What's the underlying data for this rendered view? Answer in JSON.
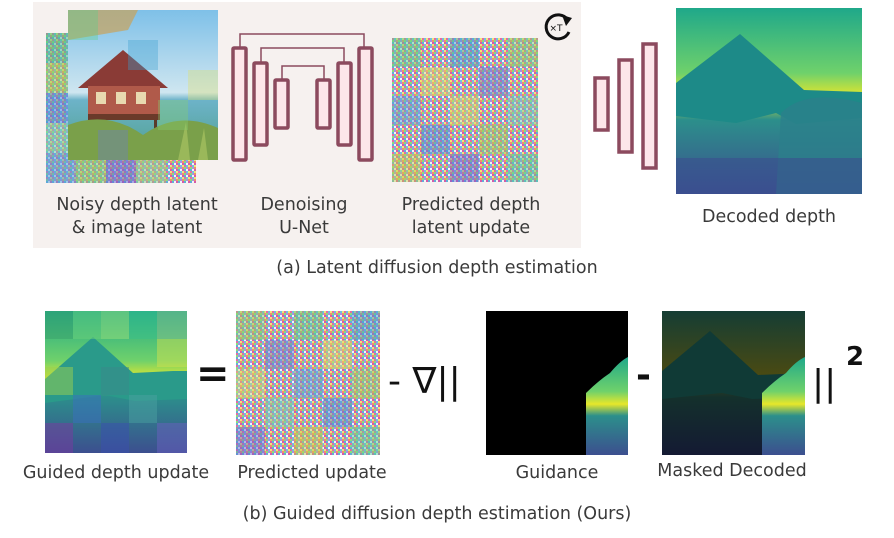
{
  "panel_a": {
    "labels": {
      "noisy_latent_line1": "Noisy depth latent",
      "noisy_latent_line2": "& image latent",
      "unet_line1": "Denoising",
      "unet_line2": "U-Net",
      "predicted_line1": "Predicted depth",
      "predicted_line2": "latent update",
      "decoded": "Decoded depth"
    },
    "repeat_badge": "×T",
    "caption": "(a) Latent diffusion depth estimation"
  },
  "panel_b": {
    "labels": {
      "guided_update": "Guided depth update",
      "predicted_update": "Predicted update",
      "guidance": "Guidance",
      "masked_decoded": "Masked Decoded"
    },
    "equation": {
      "equals": "=",
      "minus_grad": "- ∇||",
      "minus": "-",
      "norm_sq": "||",
      "power": "2"
    },
    "caption": "(b) Guided diffusion depth estimation (Ours)"
  },
  "colors": {
    "unet_stroke": "#8c4a5e",
    "unet_fill": "#fde6ea",
    "panel_bg": "#f6f1ef"
  }
}
